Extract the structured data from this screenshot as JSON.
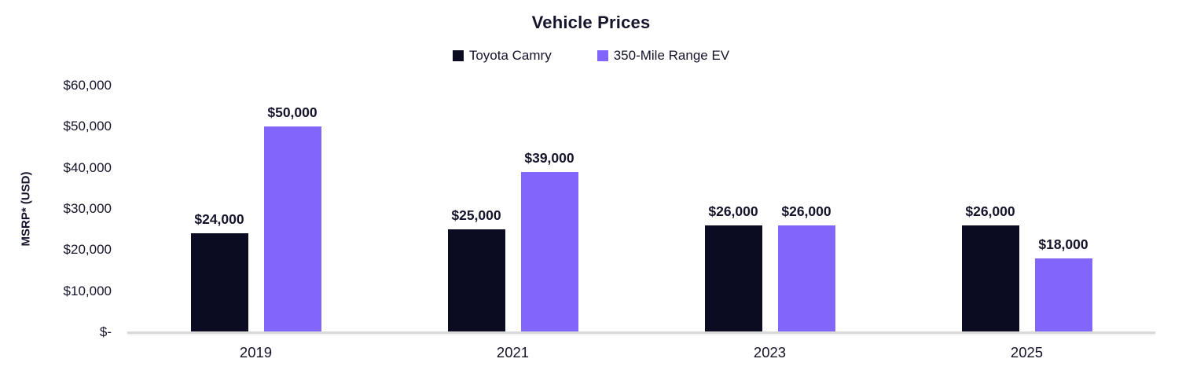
{
  "chart_data": {
    "type": "bar",
    "title": "Vehicle Prices",
    "ylabel": "MSRP* (USD)",
    "xlabel": "",
    "categories": [
      "2019",
      "2021",
      "2023",
      "2025"
    ],
    "series": [
      {
        "name": "Toyota Camry",
        "color": "#0b0b22",
        "values": [
          24000,
          25000,
          26000,
          26000
        ],
        "value_labels": [
          "$24,000",
          "$25,000",
          "$26,000",
          "$26,000"
        ]
      },
      {
        "name": "350-Mile Range EV",
        "color": "#8266fb",
        "values": [
          50000,
          39000,
          26000,
          18000
        ],
        "value_labels": [
          "$50,000",
          "$39,000",
          "$26,000",
          "$18,000"
        ]
      }
    ],
    "ylim": [
      0,
      60000
    ],
    "yticks": [
      {
        "value": 0,
        "label": "$-"
      },
      {
        "value": 10000,
        "label": "$10,000"
      },
      {
        "value": 20000,
        "label": "$20,000"
      },
      {
        "value": 30000,
        "label": "$30,000"
      },
      {
        "value": 40000,
        "label": "$40,000"
      },
      {
        "value": 50000,
        "label": "$50,000"
      },
      {
        "value": 60000,
        "label": "$60,000"
      }
    ],
    "legend_position": "top-center",
    "grid": false,
    "baseline_color": "#d9d9d9",
    "text_color": "#14142b",
    "background_color": "#ffffff"
  }
}
